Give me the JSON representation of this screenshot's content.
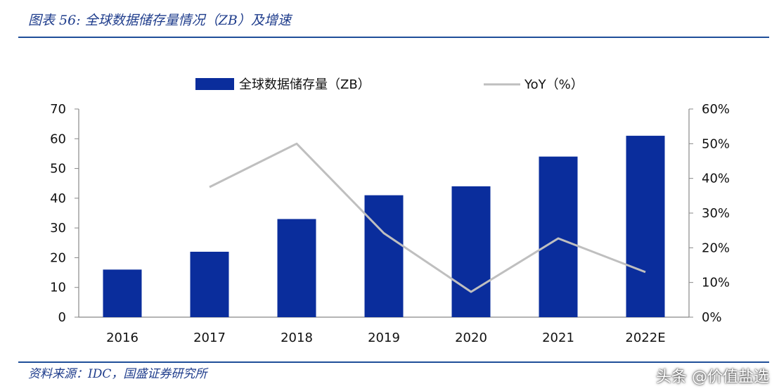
{
  "header": {
    "title": "图表 56: 全球数据储存量情况（ZB）及增速"
  },
  "footer": {
    "source": "资料来源：IDC，国盛证券研究所",
    "watermark": "头条 @价值盐选"
  },
  "chart_data": {
    "type": "bar",
    "categories": [
      "2016",
      "2017",
      "2018",
      "2019",
      "2020",
      "2021",
      "2022E"
    ],
    "series": [
      {
        "name": "全球数据储存量（ZB）",
        "type": "bar",
        "axis": "left",
        "color": "#0a2d9c",
        "values": [
          16,
          22,
          33,
          41,
          44,
          54,
          61
        ]
      },
      {
        "name": "YoY（%）",
        "type": "line",
        "axis": "right",
        "color": "#bfbfbf",
        "values": [
          null,
          37.5,
          50.0,
          24.2,
          7.3,
          22.7,
          13.0
        ]
      }
    ],
    "y_left": {
      "min": 0,
      "max": 70,
      "ticks": [
        "0",
        "10",
        "20",
        "30",
        "40",
        "50",
        "60",
        "70"
      ]
    },
    "y_right": {
      "min": 0,
      "max": 60,
      "ticks": [
        "0%",
        "10%",
        "20%",
        "30%",
        "40%",
        "50%",
        "60%"
      ]
    },
    "legend_position": "top",
    "grid": false
  }
}
